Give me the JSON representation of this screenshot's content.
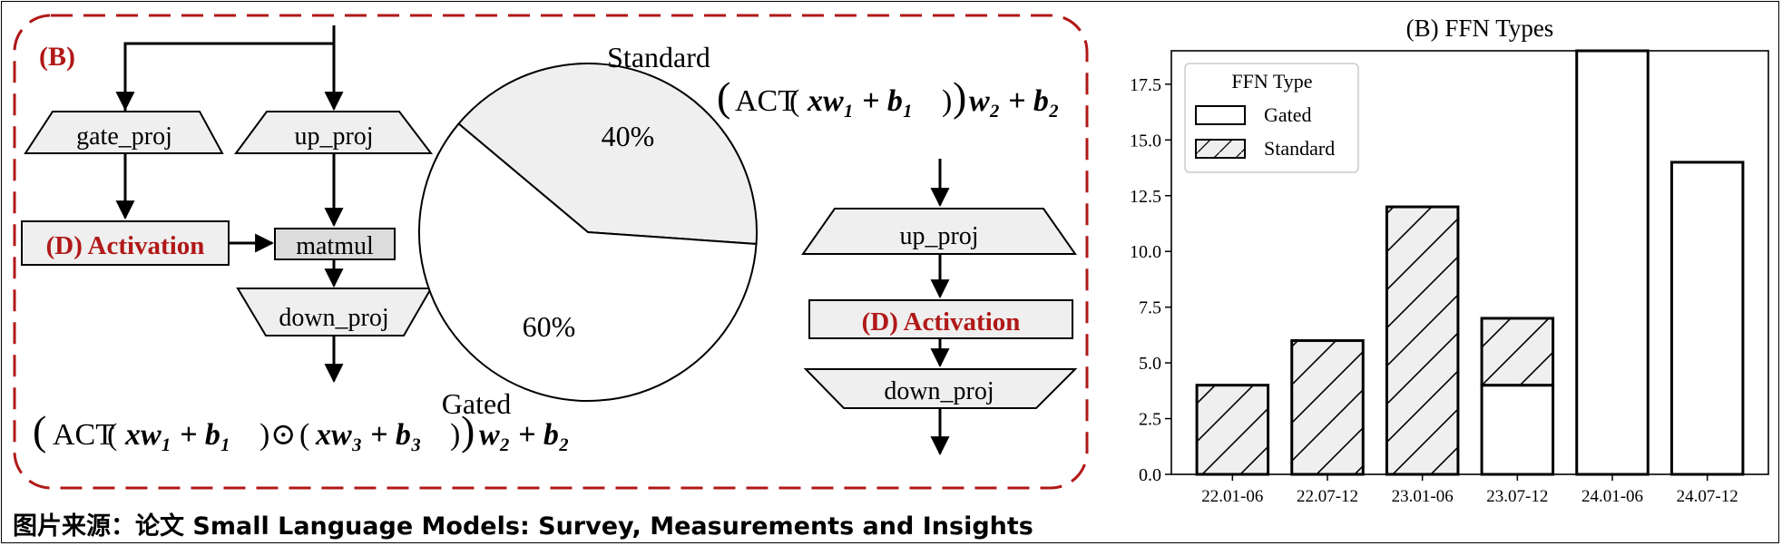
{
  "diagram": {
    "panel_label": "(B)",
    "gated_branch": {
      "gate_proj": "gate_proj",
      "up_proj": "up_proj",
      "activation": "(D) Activation",
      "matmul": "matmul",
      "down_proj": "down_proj",
      "formula_prefix": "ACT",
      "formula_suffix": "w₂ + b₂",
      "formula_middle_1": "xw₁ + b₁",
      "formula_odot": "⊙",
      "formula_middle_2": "xw₃ + b₃"
    },
    "standard_branch": {
      "up_proj": "up_proj",
      "activation": "(D) Activation",
      "down_proj": "down_proj",
      "formula_prefix": "ACT",
      "formula_middle": "xw₁ + b₁",
      "formula_suffix": "w₂ + b₂"
    },
    "pie": {
      "slices": [
        {
          "label": "Standard",
          "pct_label": "40%",
          "value": 40,
          "fill": "#efefef"
        },
        {
          "label": "Gated",
          "pct_label": "60%",
          "value": 60,
          "fill": "#ffffff"
        }
      ]
    },
    "colors": {
      "accent_red": "#b11818",
      "box_fill": "#efefef",
      "matmul_fill": "#dcdcdc",
      "border": "#000000"
    }
  },
  "chart_data": {
    "type": "bar",
    "title": "(B) FFN Types",
    "categories": [
      "22.01-06",
      "22.07-12",
      "23.01-06",
      "23.07-12",
      "24.01-06",
      "24.07-12"
    ],
    "series": [
      {
        "name": "Gated",
        "values": [
          0,
          0,
          0,
          4,
          19,
          14
        ],
        "fill": "#ffffff",
        "hatch": false
      },
      {
        "name": "Standard",
        "values": [
          4,
          6,
          12,
          3,
          0,
          0
        ],
        "fill": "#efefef",
        "hatch": true
      }
    ],
    "stacked": true,
    "legend_title": "FFN Type",
    "legend_position": "top-left",
    "ylim": [
      0,
      19
    ],
    "yticks": [
      "0.0",
      "2.5",
      "5.0",
      "7.5",
      "10.0",
      "12.5",
      "15.0",
      "17.5"
    ],
    "ytick_values": [
      0,
      2.5,
      5,
      7.5,
      10,
      12.5,
      15,
      17.5
    ],
    "xlabel": "",
    "ylabel": "",
    "grid": false
  },
  "caption": "图片来源：论文 Small Language Models: Survey, Measurements and Insights"
}
